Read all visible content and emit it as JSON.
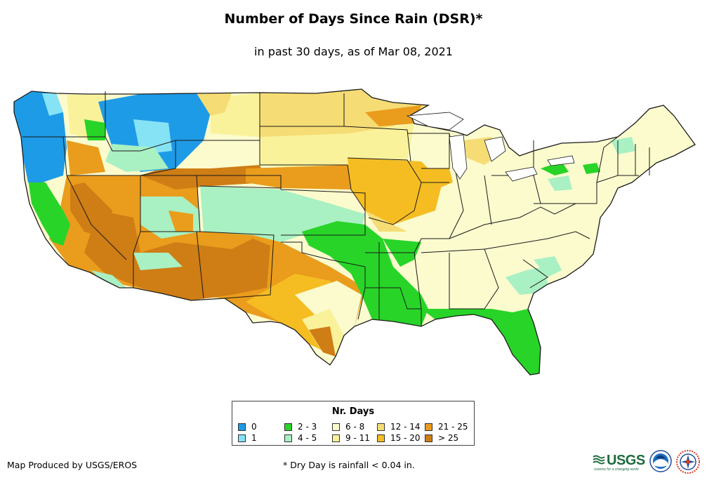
{
  "title": "Number of Days Since Rain (DSR)*",
  "subtitle": "in past 30 days, as of Mar 08, 2021",
  "legend": {
    "title": "Nr. Days",
    "items": [
      {
        "label": "0",
        "color": "#1e9be6"
      },
      {
        "label": "1",
        "color": "#86e3f5"
      },
      {
        "label": "2 - 3",
        "color": "#28d428"
      },
      {
        "label": "4 - 5",
        "color": "#a9f0c3"
      },
      {
        "label": "6 - 8",
        "color": "#fbfbce"
      },
      {
        "label": "9 - 11",
        "color": "#faf29a"
      },
      {
        "label": "12 - 14",
        "color": "#f6dc74"
      },
      {
        "label": "15 - 20",
        "color": "#f5bd22"
      },
      {
        "label": "21 - 25",
        "color": "#ea9c1c"
      },
      {
        "label": "> 25",
        "color": "#cf7d15"
      }
    ]
  },
  "footer": {
    "credit": "Map Produced by USGS/EROS",
    "note": "* Dry Day is rainfall < 0.04 in."
  },
  "logos": {
    "usgs": "USGS",
    "usgs_tagline": "science for a changing world"
  }
}
